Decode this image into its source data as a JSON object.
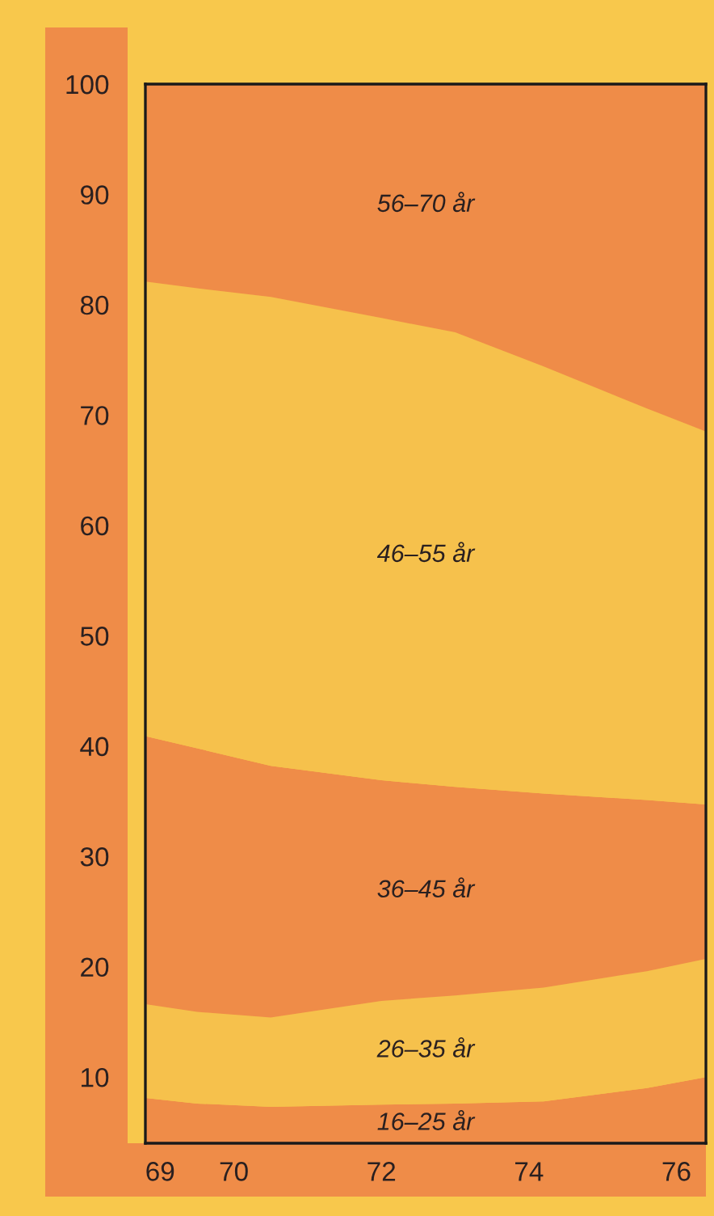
{
  "chart_data": {
    "type": "area",
    "stacked": true,
    "x": [
      68.8,
      69.5,
      70.5,
      72,
      73,
      74.2,
      75.6,
      76.4
    ],
    "series": [
      {
        "name": "16–25 år",
        "color": "#ef8c48",
        "values": [
          8.1,
          7.6,
          7.3,
          7.5,
          7.6,
          7.8,
          9.0,
          10.0
        ]
      },
      {
        "name": "26–35 år",
        "color": "#f6c14c",
        "values": [
          8.5,
          8.3,
          8.1,
          9.4,
          9.8,
          10.3,
          10.6,
          10.7
        ]
      },
      {
        "name": "36–45 år",
        "color": "#ef8c48",
        "values": [
          24.3,
          23.9,
          22.8,
          20.0,
          18.9,
          17.6,
          15.5,
          14.0
        ]
      },
      {
        "name": "46–55 år",
        "color": "#f6c14c",
        "values": [
          41.2,
          41.7,
          42.5,
          41.9,
          41.2,
          38.7,
          35.5,
          33.8
        ]
      },
      {
        "name": "56–70 år",
        "color": "#ef8c48",
        "values": [
          17.9,
          18.5,
          19.3,
          21.2,
          22.5,
          25.6,
          29.4,
          31.5
        ]
      }
    ],
    "xlim": [
      68.8,
      76.4
    ],
    "xticks": [
      69,
      70,
      72,
      74,
      76
    ],
    "ylim": [
      4,
      100
    ],
    "yticks": [
      10,
      20,
      30,
      40,
      50,
      60,
      70,
      80,
      90,
      100
    ],
    "grid": false,
    "legend": false
  }
}
